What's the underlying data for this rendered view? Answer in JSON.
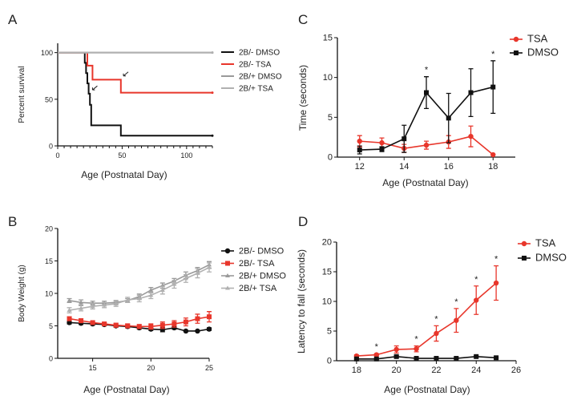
{
  "colors": {
    "red": "#e8362b",
    "black": "#111111",
    "gray": "#9a9a9a",
    "gray2": "#b0b0b0"
  },
  "chart_data": [
    {
      "panel": "A",
      "type": "line",
      "step": true,
      "xlabel": "Age (Postnatal Day)",
      "ylabel": "Percent survival",
      "xlim": [
        0,
        120
      ],
      "ylim": [
        0,
        110
      ],
      "xticks": [
        0,
        50,
        100
      ],
      "yticks": [
        0,
        50,
        100
      ],
      "legend": "right",
      "series": [
        {
          "name": "2B/- DMSO",
          "color": "black",
          "x": [
            0,
            21,
            22,
            23,
            24,
            25,
            26,
            49,
            120
          ],
          "y": [
            100,
            89,
            78,
            67,
            56,
            44,
            22,
            11,
            11
          ]
        },
        {
          "name": "2B/- TSA",
          "color": "red",
          "x": [
            0,
            23,
            27,
            49,
            120
          ],
          "y": [
            100,
            86,
            71,
            57,
            57
          ]
        },
        {
          "name": "2B/+ DMSO",
          "color": "gray",
          "x": [
            0,
            120
          ],
          "y": [
            100,
            100
          ]
        },
        {
          "name": "2B/+ TSA",
          "color": "gray2",
          "x": [
            0,
            120
          ],
          "y": [
            100,
            100
          ]
        }
      ],
      "annotations": [
        {
          "type": "arrow",
          "x": 27,
          "y": 60
        },
        {
          "type": "arrow",
          "x": 51,
          "y": 75
        }
      ]
    },
    {
      "panel": "B",
      "type": "line",
      "xlabel": "Age (Postnatal Day)",
      "ylabel": "Body Weight (g)",
      "xlim": [
        12,
        25
      ],
      "ylim": [
        0,
        20
      ],
      "xticks": [
        15,
        20,
        25
      ],
      "yticks": [
        0,
        5,
        10,
        15,
        20
      ],
      "legend": "right",
      "series": [
        {
          "name": "2B/- DMSO",
          "color": "black",
          "marker": "circle",
          "x": [
            13,
            14,
            15,
            16,
            17,
            18,
            19,
            20,
            21,
            22,
            23,
            24,
            25
          ],
          "y": [
            5.5,
            5.4,
            5.3,
            5.2,
            5.0,
            4.9,
            4.7,
            4.5,
            4.4,
            4.7,
            4.2,
            4.2,
            4.5
          ],
          "err": [
            0.2,
            0.2,
            0.2,
            0.2,
            0.2,
            0.2,
            0.2,
            0.2,
            0.3,
            0.2,
            0.1,
            0.1,
            0.2
          ]
        },
        {
          "name": "2B/- TSA",
          "color": "red",
          "marker": "square",
          "x": [
            13,
            14,
            15,
            16,
            17,
            18,
            19,
            20,
            21,
            22,
            23,
            24,
            25
          ],
          "y": [
            6.1,
            5.8,
            5.5,
            5.3,
            5.1,
            5.0,
            4.9,
            4.9,
            5.1,
            5.3,
            5.6,
            6.1,
            6.4
          ],
          "err": [
            0.3,
            0.3,
            0.2,
            0.2,
            0.3,
            0.3,
            0.3,
            0.4,
            0.5,
            0.5,
            0.6,
            0.7,
            0.8
          ]
        },
        {
          "name": "2B/+ DMSO",
          "color": "gray",
          "marker": "triangle",
          "x": [
            13,
            14,
            15,
            16,
            17,
            18,
            19,
            20,
            21,
            22,
            23,
            24,
            25
          ],
          "y": [
            8.9,
            8.6,
            8.5,
            8.5,
            8.6,
            8.9,
            9.5,
            10.5,
            11.2,
            11.9,
            12.8,
            13.5,
            14.4
          ],
          "err": [
            0.3,
            0.4,
            0.3,
            0.3,
            0.3,
            0.3,
            0.4,
            0.4,
            0.4,
            0.4,
            0.5,
            0.5,
            0.5
          ]
        },
        {
          "name": "2B/+ TSA",
          "color": "gray2",
          "marker": "triangle",
          "x": [
            13,
            14,
            15,
            16,
            17,
            18,
            19,
            20,
            21,
            22,
            23,
            24,
            25
          ],
          "y": [
            7.4,
            7.7,
            8.0,
            8.2,
            8.4,
            9.0,
            9.2,
            9.7,
            10.5,
            11.4,
            12.3,
            13.1,
            14.0
          ],
          "err": [
            0.4,
            0.4,
            0.4,
            0.4,
            0.4,
            0.4,
            0.5,
            0.5,
            0.6,
            0.6,
            0.6,
            0.7,
            0.7
          ]
        }
      ]
    },
    {
      "panel": "C",
      "type": "line",
      "xlabel": "Age (Postnatal Day)",
      "ylabel": "Time (seconds)",
      "xlim": [
        11,
        19
      ],
      "ylim": [
        0,
        15
      ],
      "xticks": [
        12,
        14,
        16,
        18
      ],
      "yticks": [
        0,
        5,
        10,
        15
      ],
      "legend": "top-right",
      "series": [
        {
          "name": "TSA",
          "color": "red",
          "marker": "circle",
          "x": [
            12,
            13,
            14,
            15,
            16,
            17,
            18
          ],
          "y": [
            2.0,
            1.8,
            1.1,
            1.5,
            1.9,
            2.6,
            0.3
          ],
          "err": [
            0.7,
            0.6,
            0.5,
            0.5,
            0.8,
            1.3,
            0
          ]
        },
        {
          "name": "DMSO",
          "color": "black",
          "marker": "square",
          "x": [
            12,
            13,
            14,
            15,
            16,
            17,
            18
          ],
          "y": [
            0.9,
            1.0,
            2.3,
            8.1,
            4.9,
            8.1,
            8.8
          ],
          "err": [
            0.5,
            0.3,
            1.7,
            2.0,
            3.1,
            3.0,
            3.3
          ]
        }
      ],
      "significance": {
        "symbol": "*",
        "x": [
          15,
          18
        ]
      }
    },
    {
      "panel": "D",
      "type": "line",
      "xlabel": "Age (Postnatal Day)",
      "ylabel": "Latency to fall (seconds)",
      "xlim": [
        17,
        26
      ],
      "ylim": [
        0,
        20
      ],
      "xticks": [
        18,
        20,
        22,
        24,
        26
      ],
      "yticks": [
        0,
        5,
        10,
        15,
        20
      ],
      "legend": "top-right",
      "series": [
        {
          "name": "TSA",
          "color": "red",
          "marker": "circle",
          "x": [
            18,
            19,
            20,
            21,
            22,
            23,
            24,
            25
          ],
          "y": [
            0.8,
            1.0,
            1.9,
            2.0,
            4.6,
            6.8,
            10.2,
            13.1
          ],
          "err": [
            0.2,
            0.2,
            0.6,
            0.5,
            1.3,
            2.0,
            2.4,
            2.9
          ]
        },
        {
          "name": "DMSO",
          "color": "black",
          "marker": "square",
          "x": [
            18,
            19,
            20,
            21,
            22,
            23,
            24,
            25
          ],
          "y": [
            0.3,
            0.3,
            0.7,
            0.4,
            0.4,
            0.4,
            0.7,
            0.5
          ],
          "err": [
            0.1,
            0.1,
            0.2,
            0.1,
            0.1,
            0.1,
            0.1,
            0.1
          ]
        }
      ],
      "significance": {
        "symbol": "*",
        "x": [
          19,
          21,
          22,
          23,
          24,
          25
        ]
      }
    }
  ]
}
